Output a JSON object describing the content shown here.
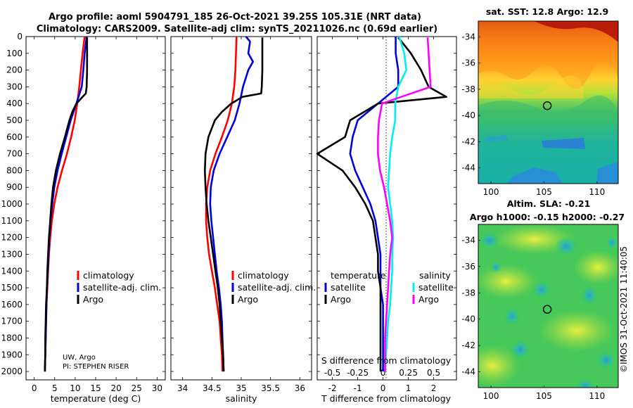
{
  "header": {
    "title_line1": "Argo profile: aoml 5904791_185 26-Oct-2021 39.25S 105.31E (NRT data)",
    "title_line2": "Climatology: CARS2009. Satellite-adj clim: synTS_20211026.nc (0.69d earlier)"
  },
  "colors": {
    "climatology": "#ff0000",
    "satellite": "#0000dd",
    "argo": "#000000",
    "sal_climatology": "#ff00ff",
    "sal_satellite": "#00eeee"
  },
  "chart_data": [
    {
      "type": "line",
      "name": "temperature",
      "xlabel": "temperature (deg C)",
      "xlim": [
        -2,
        32
      ],
      "ylim": [
        2050,
        0
      ],
      "xticks": [
        "0",
        "5",
        "10",
        "15",
        "20",
        "25",
        "30"
      ],
      "yticks": [
        "0",
        "100",
        "200",
        "300",
        "400",
        "500",
        "600",
        "700",
        "800",
        "900",
        "1000",
        "1100",
        "1200",
        "1300",
        "1400",
        "1500",
        "1600",
        "1700",
        "1800",
        "1900",
        "2000"
      ],
      "legend": [
        "climatology",
        "satellite-adj. clim.",
        "Argo"
      ],
      "series": [
        {
          "name": "climatology",
          "color": "#ff0000",
          "depth": [
            0,
            100,
            200,
            300,
            400,
            500,
            600,
            700,
            800,
            900,
            1000,
            1100,
            1200,
            1300,
            1400,
            1500,
            1600,
            1700,
            1800,
            1900,
            2000
          ],
          "values": [
            12.3,
            11.8,
            11.4,
            11.0,
            10.5,
            9.9,
            9.0,
            8.0,
            6.8,
            5.7,
            4.9,
            4.3,
            3.9,
            3.6,
            3.4,
            3.2,
            3.0,
            2.9,
            2.8,
            2.7,
            2.6
          ]
        },
        {
          "name": "satellite-adj. clim.",
          "color": "#0000dd",
          "depth": [
            0,
            100,
            200,
            300,
            400,
            500,
            600,
            700,
            800,
            900,
            1000,
            1100,
            1200,
            1300,
            1400,
            1500,
            1600,
            1700,
            1800,
            1900,
            2000
          ],
          "values": [
            12.8,
            12.3,
            12.0,
            11.6,
            10.3,
            8.9,
            7.8,
            6.7,
            5.7,
            4.9,
            4.4,
            4.0,
            3.7,
            3.5,
            3.3,
            3.1,
            3.0,
            2.9,
            2.8,
            2.7,
            2.6
          ]
        },
        {
          "name": "Argo",
          "color": "#000000",
          "depth": [
            5,
            50,
            100,
            200,
            300,
            340,
            360,
            400,
            450,
            500,
            600,
            700,
            800,
            900,
            1000,
            1100,
            1200,
            1300,
            1400,
            1500,
            1600,
            1700,
            1800,
            1900,
            2000
          ],
          "values": [
            12.9,
            12.9,
            12.9,
            12.9,
            12.8,
            12.6,
            11.8,
            10.3,
            9.3,
            8.6,
            7.5,
            6.3,
            5.3,
            4.6,
            4.2,
            3.9,
            3.6,
            3.4,
            3.2,
            3.1,
            2.9,
            2.8,
            2.7,
            2.7,
            2.6
          ]
        }
      ]
    },
    {
      "type": "line",
      "name": "salinity",
      "xlabel": "salinity",
      "xlim": [
        33.8,
        36.2
      ],
      "ylim": [
        2050,
        0
      ],
      "xticks": [
        "34",
        "34.5",
        "35",
        "35.5",
        "36"
      ],
      "legend": [
        "climatology",
        "satellite-adj. clim.",
        "Argo"
      ],
      "series": [
        {
          "name": "climatology",
          "color": "#ff0000",
          "depth": [
            0,
            100,
            200,
            300,
            400,
            500,
            600,
            700,
            800,
            900,
            1000,
            1100,
            1200,
            1300,
            1400,
            1500,
            1600,
            1700,
            1800,
            1900,
            2000
          ],
          "values": [
            34.92,
            34.91,
            34.9,
            34.88,
            34.84,
            34.77,
            34.67,
            34.56,
            34.47,
            34.42,
            34.4,
            34.4,
            34.42,
            34.45,
            34.5,
            34.55,
            34.59,
            34.63,
            34.65,
            34.67,
            34.68
          ]
        },
        {
          "name": "satellite-adj. clim.",
          "color": "#0000dd",
          "depth": [
            0,
            30,
            100,
            150,
            200,
            300,
            400,
            500,
            600,
            700,
            800,
            900,
            1000,
            1100,
            1200,
            1300,
            1400,
            1500,
            1600,
            1700,
            1800,
            1900,
            2000
          ],
          "values": [
            35.08,
            35.15,
            35.12,
            35.2,
            35.12,
            35.03,
            34.97,
            34.89,
            34.76,
            34.63,
            34.53,
            34.48,
            34.47,
            34.49,
            34.52,
            34.55,
            34.58,
            34.62,
            34.65,
            34.67,
            34.68,
            34.69,
            34.7
          ]
        },
        {
          "name": "Argo",
          "color": "#000000",
          "depth": [
            5,
            50,
            100,
            200,
            300,
            340,
            360,
            400,
            450,
            500,
            600,
            700,
            800,
            900,
            1000,
            1100,
            1200,
            1300,
            1400,
            1500,
            1600,
            1700,
            1800,
            1900,
            2000
          ],
          "values": [
            35.36,
            35.36,
            35.36,
            35.36,
            35.35,
            35.34,
            35.02,
            34.83,
            34.67,
            34.55,
            34.44,
            34.39,
            34.38,
            34.39,
            34.41,
            34.44,
            34.48,
            34.52,
            34.56,
            34.6,
            34.63,
            34.65,
            34.67,
            34.69,
            34.7
          ]
        }
      ]
    },
    {
      "type": "line",
      "name": "difference from climatology",
      "xlabel": "T difference from climatology",
      "xlabel_top": "S difference from climatology",
      "xlim": [
        -2.6,
        2.9
      ],
      "ylim": [
        2050,
        0
      ],
      "xticks": [
        "-2",
        "-1",
        "0",
        "1",
        "2"
      ],
      "xticks_top": [
        "-0.5",
        "-0.25",
        "0",
        "0.25",
        "0.5"
      ],
      "legend_left_title": "temperature",
      "legend_right_title": "salinity",
      "legend_left": [
        "satellite",
        "Argo"
      ],
      "legend_right": [
        "satellite",
        "Argo"
      ],
      "series": [
        {
          "name": "temperature satellite",
          "color": "#0000dd",
          "depth": [
            0,
            100,
            200,
            300,
            400,
            500,
            600,
            700,
            800,
            900,
            1000,
            1100,
            1200,
            1300,
            1400,
            1500,
            1600,
            1700,
            1800,
            1900,
            2000
          ],
          "values": [
            0.5,
            0.5,
            0.6,
            0.6,
            -0.2,
            -1.0,
            -1.2,
            -1.3,
            -1.1,
            -0.8,
            -0.5,
            -0.3,
            -0.2,
            -0.1,
            -0.1,
            -0.1,
            0,
            0,
            0,
            0,
            0
          ]
        },
        {
          "name": "temperature Argo",
          "color": "#000000",
          "depth": [
            5,
            100,
            200,
            300,
            360,
            400,
            500,
            600,
            700,
            800,
            900,
            1000,
            1100,
            1200,
            1300,
            1400,
            1500,
            1600,
            1700,
            1800,
            1900,
            2000
          ],
          "values": [
            0.6,
            1.1,
            1.5,
            1.8,
            2.5,
            -0.2,
            -1.3,
            -1.5,
            -2.6,
            -1.6,
            -1.1,
            -0.7,
            -0.4,
            -0.3,
            -0.2,
            -0.2,
            -0.1,
            -0.1,
            -0.1,
            -0.1,
            -0.1,
            -0.1
          ]
        },
        {
          "name": "salinity satellite",
          "color": "#00eeee",
          "depth": [
            0,
            100,
            200,
            300,
            400,
            500,
            600,
            700,
            800,
            900,
            1000,
            1100,
            1200,
            1300,
            1400,
            1500,
            1600,
            1700,
            1800,
            1900,
            2000
          ],
          "values": [
            0.16,
            0.21,
            0.23,
            0.15,
            0.12,
            0.12,
            0.09,
            0.07,
            0.06,
            0.05,
            0.07,
            0.09,
            0.1,
            0.09,
            0.09,
            0.08,
            0.07,
            0.05,
            0.04,
            0.03,
            0.02
          ]
        },
        {
          "name": "salinity Argo",
          "color": "#ff00ff",
          "depth": [
            5,
            100,
            200,
            300,
            360,
            400,
            500,
            600,
            700,
            800,
            900,
            1000,
            1100,
            1200,
            1300,
            1400,
            1500,
            1600,
            1700,
            1800,
            1900,
            2000
          ],
          "values": [
            0.44,
            0.45,
            0.46,
            0.47,
            0.18,
            -0.01,
            -0.04,
            -0.05,
            -0.05,
            -0.03,
            0.01,
            0.04,
            0.07,
            0.09,
            0.07,
            0.06,
            0.05,
            0.04,
            0.03,
            0.02,
            0.02,
            0.02
          ]
        }
      ]
    },
    {
      "type": "heatmap",
      "name": "satellite SST map",
      "title": "sat. SST: 12.8 Argo: 12.9",
      "xticks": [
        "100",
        "105",
        "110"
      ],
      "yticks": [
        "-34",
        "-36",
        "-38",
        "-40",
        "-42",
        "-44"
      ],
      "xlim": [
        98.8,
        112
      ],
      "ylim": [
        -45.2,
        -32.8
      ],
      "float_position": [
        105.31,
        -39.25
      ]
    },
    {
      "type": "heatmap",
      "name": "altimetry SLA map",
      "title_line1": "Altim. SLA: -0.21",
      "title_line2": "Argo h1000: -0.15 h2000: -0.27",
      "xticks": [
        "100",
        "105",
        "110"
      ],
      "yticks": [
        "-34",
        "-36",
        "-38",
        "-40",
        "-42",
        "-44"
      ],
      "xlim": [
        98.8,
        112
      ],
      "ylim": [
        -45.2,
        -32.8
      ],
      "float_position": [
        105.31,
        -39.25
      ]
    }
  ],
  "annotations": {
    "origin_line1": "UW, Argo",
    "origin_line2": "PI: STEPHEN RISER",
    "timestamp": "©IMOS 31-Oct-2021 11:40:05"
  }
}
